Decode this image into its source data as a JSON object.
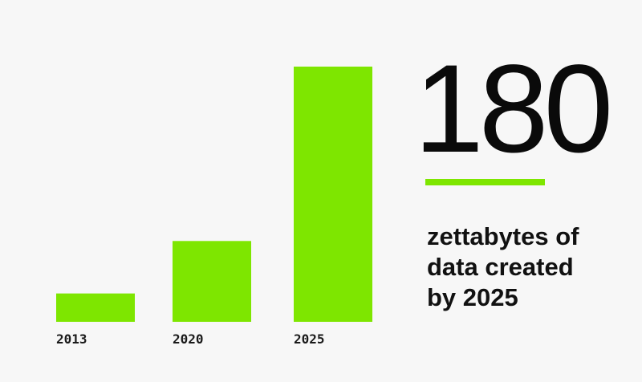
{
  "chart_data": {
    "type": "bar",
    "categories": [
      "2013",
      "2020",
      "2025"
    ],
    "values": [
      20,
      57,
      180
    ],
    "unit": "zettabytes",
    "ylim": [
      0,
      180
    ],
    "grid": false,
    "bar_color": "#7ee600"
  },
  "headline": {
    "value": "180",
    "caption_lines": [
      "zettabytes of",
      "data created",
      "by 2025"
    ]
  },
  "colors": {
    "background": "#f7f7f7",
    "accent": "#7ee600",
    "text": "#111111"
  }
}
